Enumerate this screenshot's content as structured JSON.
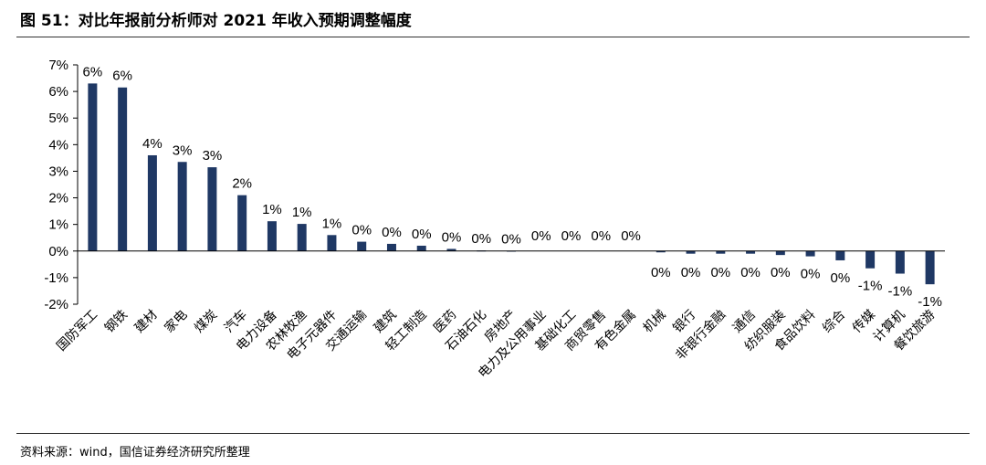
{
  "figure": {
    "title": "图 51：对比年报前分析师对 2021 年收入预期调整幅度",
    "source": "资料来源：wind，国信证券经济研究所整理"
  },
  "colors": {
    "bar": "#1f3864",
    "axis": "#000000",
    "rule": "#333333"
  },
  "chart_data": {
    "type": "bar",
    "title": "",
    "xlabel": "",
    "ylabel": "",
    "ylim": [
      -2,
      7
    ],
    "y_ticks": [
      "7%",
      "6%",
      "5%",
      "4%",
      "3%",
      "2%",
      "1%",
      "0%",
      "-1%",
      "-2%"
    ],
    "y_tick_values": [
      7,
      6,
      5,
      4,
      3,
      2,
      1,
      0,
      -1,
      -2
    ],
    "grid": false,
    "legend": "none",
    "categories": [
      "国防军工",
      "钢铁",
      "建材",
      "家电",
      "煤炭",
      "汽车",
      "电力设备",
      "农林牧渔",
      "电子元器件",
      "交通运输",
      "建筑",
      "轻工制造",
      "医药",
      "石油石化",
      "房地产",
      "电力及公用事业",
      "基础化工",
      "商贸零售",
      "有色金属",
      "机械",
      "银行",
      "非银行金融",
      "通信",
      "纺织服装",
      "食品饮料",
      "综合",
      "传媒",
      "计算机",
      "餐饮旅游"
    ],
    "values": [
      6.3,
      6.15,
      3.6,
      3.35,
      3.15,
      2.1,
      1.12,
      1.02,
      0.6,
      0.35,
      0.27,
      0.2,
      0.08,
      0.02,
      0.01,
      0.0,
      0.0,
      0.0,
      0.0,
      -0.05,
      -0.1,
      -0.1,
      -0.1,
      -0.15,
      -0.2,
      -0.35,
      -0.65,
      -0.85,
      -1.25
    ],
    "data_labels": [
      "6%",
      "6%",
      "4%",
      "3%",
      "3%",
      "2%",
      "1%",
      "1%",
      "1%",
      "0%",
      "0%",
      "0%",
      "0%",
      "0%",
      "0%",
      "0%",
      "0%",
      "0%",
      "0%",
      "0%",
      "0%",
      "0%",
      "0%",
      "0%",
      "0%",
      "0%",
      "-1%",
      "-1%",
      "-1%"
    ]
  }
}
